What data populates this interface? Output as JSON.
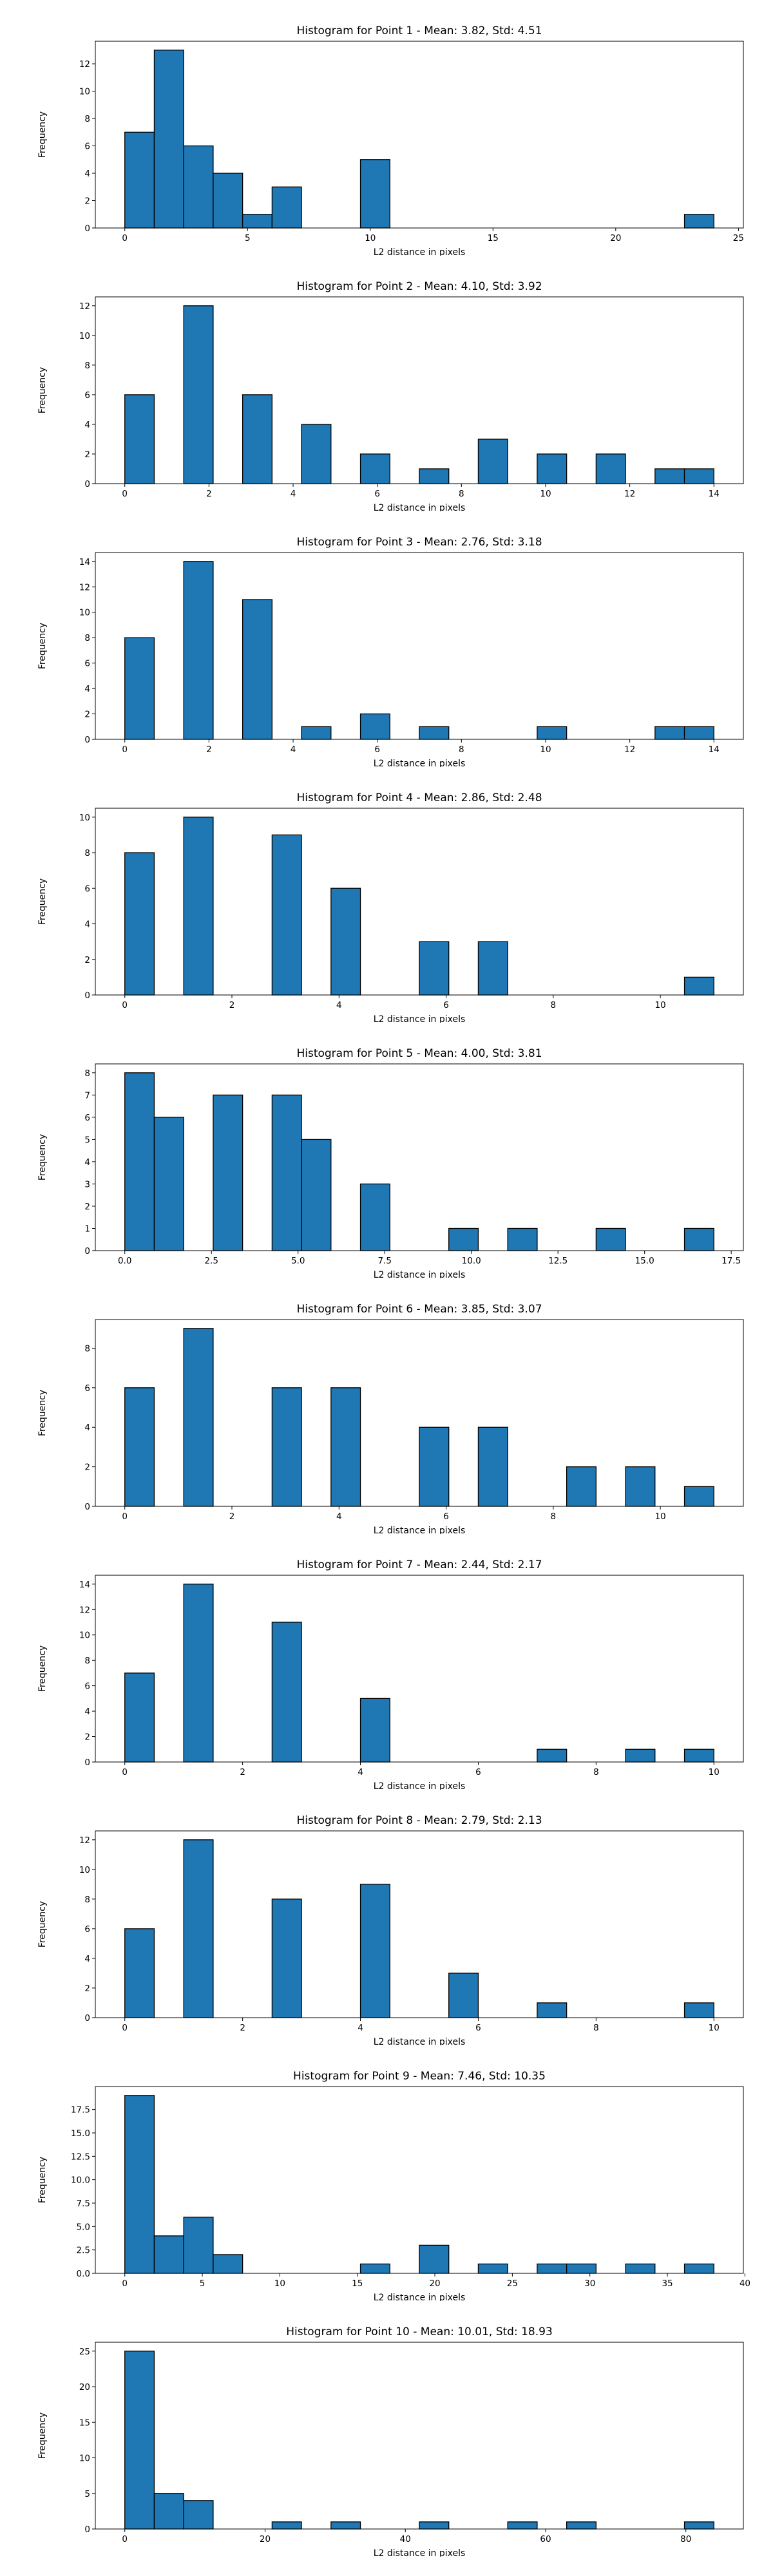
{
  "chart_data": [
    {
      "type": "bar",
      "title": "Histogram for Point 1 - Mean: 3.82, Std: 4.51",
      "xlabel": "L2 distance in pixels",
      "ylabel": "Frequency",
      "xlim": [
        -1.2,
        25.2
      ],
      "ylim": [
        0,
        13.65
      ],
      "xticks": [
        0,
        5,
        10,
        15,
        20,
        25
      ],
      "xtick_labels": [
        "0",
        "5",
        "10",
        "15",
        "20",
        "25"
      ],
      "yticks": [
        0,
        2,
        4,
        6,
        8,
        10,
        12
      ],
      "ytick_labels": [
        "0",
        "2",
        "4",
        "6",
        "8",
        "10",
        "12"
      ],
      "bin_width": 1.2,
      "bins": [
        0,
        1.2,
        2.4,
        3.6,
        4.8,
        6.0,
        9.6,
        22.8
      ],
      "values": [
        7,
        13,
        6,
        4,
        1,
        3,
        5,
        1
      ],
      "bar_color": "#1f77b4",
      "edge_color": "#000000",
      "grid": false
    },
    {
      "type": "bar",
      "title": "Histogram for Point 2 - Mean: 4.10, Std: 3.92",
      "xlabel": "L2 distance in pixels",
      "ylabel": "Frequency",
      "xlim": [
        -0.7,
        14.7
      ],
      "ylim": [
        0,
        12.6
      ],
      "xticks": [
        0,
        2,
        4,
        6,
        8,
        10,
        12,
        14
      ],
      "xtick_labels": [
        "0",
        "2",
        "4",
        "6",
        "8",
        "10",
        "12",
        "14"
      ],
      "yticks": [
        0,
        2,
        4,
        6,
        8,
        10,
        12
      ],
      "ytick_labels": [
        "0",
        "2",
        "4",
        "6",
        "8",
        "10",
        "12"
      ],
      "bin_width": 0.7,
      "bins": [
        0,
        1.4,
        2.8,
        4.2,
        5.6,
        7.0,
        8.4,
        9.8,
        11.2,
        12.6,
        13.3
      ],
      "values": [
        6,
        12,
        6,
        4,
        2,
        1,
        3,
        2,
        2,
        1,
        1
      ],
      "bar_color": "#1f77b4",
      "edge_color": "#000000",
      "grid": false
    },
    {
      "type": "bar",
      "title": "Histogram for Point 3 - Mean: 2.76, Std: 3.18",
      "xlabel": "L2 distance in pixels",
      "ylabel": "Frequency",
      "xlim": [
        -0.7,
        14.7
      ],
      "ylim": [
        0,
        14.7
      ],
      "xticks": [
        0,
        2,
        4,
        6,
        8,
        10,
        12,
        14
      ],
      "xtick_labels": [
        "0",
        "2",
        "4",
        "6",
        "8",
        "10",
        "12",
        "14"
      ],
      "yticks": [
        0,
        2,
        4,
        6,
        8,
        10,
        12,
        14
      ],
      "ytick_labels": [
        "0",
        "2",
        "4",
        "6",
        "8",
        "10",
        "12",
        "14"
      ],
      "bin_width": 0.7,
      "bins": [
        0,
        1.4,
        2.8,
        4.2,
        5.6,
        7.0,
        9.8,
        12.6,
        13.3
      ],
      "values": [
        8,
        14,
        11,
        1,
        2,
        1,
        1,
        1,
        1
      ],
      "bar_color": "#1f77b4",
      "edge_color": "#000000",
      "grid": false
    },
    {
      "type": "bar",
      "title": "Histogram for Point 4 - Mean: 2.86, Std: 2.48",
      "xlabel": "L2 distance in pixels",
      "ylabel": "Frequency",
      "xlim": [
        -0.55,
        11.55
      ],
      "ylim": [
        0,
        10.5
      ],
      "xticks": [
        0,
        2,
        4,
        6,
        8,
        10
      ],
      "xtick_labels": [
        "0",
        "2",
        "4",
        "6",
        "8",
        "10"
      ],
      "yticks": [
        0,
        2,
        4,
        6,
        8,
        10
      ],
      "ytick_labels": [
        "0",
        "2",
        "4",
        "6",
        "8",
        "10"
      ],
      "bin_width": 0.55,
      "bins": [
        0,
        1.1,
        2.75,
        3.85,
        5.5,
        6.6,
        10.45
      ],
      "values": [
        8,
        10,
        9,
        6,
        3,
        3,
        1
      ],
      "bar_color": "#1f77b4",
      "edge_color": "#000000",
      "grid": false
    },
    {
      "type": "bar",
      "title": "Histogram for Point 5 - Mean: 4.00, Std: 3.81",
      "xlabel": "L2 distance in pixels",
      "ylabel": "Frequency",
      "xlim": [
        -0.85,
        17.85
      ],
      "ylim": [
        0,
        8.4
      ],
      "xticks": [
        0,
        2.5,
        5,
        7.5,
        10,
        12.5,
        15,
        17.5
      ],
      "xtick_labels": [
        "0.0",
        "2.5",
        "5.0",
        "7.5",
        "10.0",
        "12.5",
        "15.0",
        "17.5"
      ],
      "yticks": [
        0,
        1,
        2,
        3,
        4,
        5,
        6,
        7,
        8
      ],
      "ytick_labels": [
        "0",
        "1",
        "2",
        "3",
        "4",
        "5",
        "6",
        "7",
        "8"
      ],
      "bin_width": 0.85,
      "bins": [
        0,
        0.85,
        2.55,
        4.25,
        5.1,
        6.8,
        9.35,
        11.05,
        13.6,
        16.15
      ],
      "values": [
        8,
        6,
        7,
        7,
        5,
        3,
        1,
        1,
        1,
        1
      ],
      "bar_color": "#1f77b4",
      "edge_color": "#000000",
      "grid": false
    },
    {
      "type": "bar",
      "title": "Histogram for Point 6 - Mean: 3.85, Std: 3.07",
      "xlabel": "L2 distance in pixels",
      "ylabel": "Frequency",
      "xlim": [
        -0.55,
        11.55
      ],
      "ylim": [
        0,
        9.45
      ],
      "xticks": [
        0,
        2,
        4,
        6,
        8,
        10
      ],
      "xtick_labels": [
        "0",
        "2",
        "4",
        "6",
        "8",
        "10"
      ],
      "yticks": [
        0,
        2,
        4,
        6,
        8
      ],
      "ytick_labels": [
        "0",
        "2",
        "4",
        "6",
        "8"
      ],
      "bin_width": 0.55,
      "bins": [
        0,
        1.1,
        2.75,
        3.85,
        5.5,
        6.6,
        8.25,
        9.35,
        10.45
      ],
      "values": [
        6,
        9,
        6,
        6,
        4,
        4,
        2,
        2,
        1
      ],
      "bar_color": "#1f77b4",
      "edge_color": "#000000",
      "grid": false
    },
    {
      "type": "bar",
      "title": "Histogram for Point 7 - Mean: 2.44, Std: 2.17",
      "xlabel": "L2 distance in pixels",
      "ylabel": "Frequency",
      "xlim": [
        -0.5,
        10.5
      ],
      "ylim": [
        0,
        14.7
      ],
      "xticks": [
        0,
        2,
        4,
        6,
        8,
        10
      ],
      "xtick_labels": [
        "0",
        "2",
        "4",
        "6",
        "8",
        "10"
      ],
      "yticks": [
        0,
        2,
        4,
        6,
        8,
        10,
        12,
        14
      ],
      "ytick_labels": [
        "0",
        "2",
        "4",
        "6",
        "8",
        "10",
        "12",
        "14"
      ],
      "bin_width": 0.5,
      "bins": [
        0,
        1.0,
        2.5,
        4.0,
        7.0,
        8.5,
        9.5
      ],
      "values": [
        7,
        14,
        11,
        5,
        1,
        1,
        1
      ],
      "bar_color": "#1f77b4",
      "edge_color": "#000000",
      "grid": false
    },
    {
      "type": "bar",
      "title": "Histogram for Point 8 - Mean: 2.79, Std: 2.13",
      "xlabel": "L2 distance in pixels",
      "ylabel": "Frequency",
      "xlim": [
        -0.5,
        10.5
      ],
      "ylim": [
        0,
        12.6
      ],
      "xticks": [
        0,
        2,
        4,
        6,
        8,
        10
      ],
      "xtick_labels": [
        "0",
        "2",
        "4",
        "6",
        "8",
        "10"
      ],
      "yticks": [
        0,
        2,
        4,
        6,
        8,
        10,
        12
      ],
      "ytick_labels": [
        "0",
        "2",
        "4",
        "6",
        "8",
        "10",
        "12"
      ],
      "bin_width": 0.5,
      "bins": [
        0,
        1.0,
        2.5,
        4.0,
        5.5,
        7.0,
        9.5
      ],
      "values": [
        6,
        12,
        8,
        9,
        3,
        1,
        1
      ],
      "bar_color": "#1f77b4",
      "edge_color": "#000000",
      "grid": false
    },
    {
      "type": "bar",
      "title": "Histogram for Point 9 - Mean: 7.46, Std: 10.35",
      "xlabel": "L2 distance in pixels",
      "ylabel": "Frequency",
      "xlim": [
        -1.9,
        39.9
      ],
      "ylim": [
        0,
        19.95
      ],
      "xticks": [
        0,
        5,
        10,
        15,
        20,
        25,
        30,
        35,
        40
      ],
      "xtick_labels": [
        "0",
        "5",
        "10",
        "15",
        "20",
        "25",
        "30",
        "35",
        "40"
      ],
      "yticks": [
        0,
        2.5,
        5,
        7.5,
        10,
        12.5,
        15,
        17.5
      ],
      "ytick_labels": [
        "0.0",
        "2.5",
        "5.0",
        "7.5",
        "10.0",
        "12.5",
        "15.0",
        "17.5"
      ],
      "bin_width": 1.9,
      "bins": [
        0,
        1.9,
        3.8,
        5.7,
        15.2,
        19.0,
        22.8,
        26.6,
        28.5,
        32.3,
        36.1
      ],
      "values": [
        19,
        4,
        6,
        2,
        1,
        3,
        1,
        1,
        1,
        1,
        1
      ],
      "bar_color": "#1f77b4",
      "edge_color": "#000000",
      "grid": false
    },
    {
      "type": "bar",
      "title": "Histogram for Point 10 - Mean: 10.01, Std: 18.93",
      "xlabel": "L2 distance in pixels",
      "ylabel": "Frequency",
      "xlim": [
        -4.2,
        88.2
      ],
      "ylim": [
        0,
        26.25
      ],
      "xticks": [
        0,
        20,
        40,
        60,
        80
      ],
      "xtick_labels": [
        "0",
        "20",
        "40",
        "60",
        "80"
      ],
      "yticks": [
        0,
        5,
        10,
        15,
        20,
        25
      ],
      "ytick_labels": [
        "0",
        "5",
        "10",
        "15",
        "20",
        "25"
      ],
      "bin_width": 4.2,
      "bins": [
        0,
        4.2,
        8.4,
        21.0,
        29.4,
        42.0,
        54.6,
        63.0,
        79.8
      ],
      "values": [
        25,
        5,
        4,
        1,
        1,
        1,
        1,
        1,
        1
      ],
      "bar_color": "#1f77b4",
      "edge_color": "#000000",
      "grid": false
    }
  ]
}
